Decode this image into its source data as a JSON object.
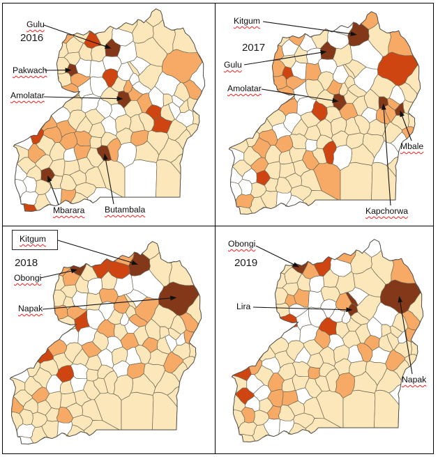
{
  "figure": {
    "kind": "choropleth small multiples",
    "region": "Uganda districts",
    "years": [
      "2016",
      "2017",
      "2018",
      "2019"
    ]
  },
  "palette": {
    "cream": "#FBE7B9",
    "white": "#FFFFFF",
    "light_orange": "#F7A966",
    "orange": "#CE4512",
    "dark_brown": "#84381A",
    "district_border": "#6E6753",
    "country_border": "#55514A",
    "annotation_text": "#111111",
    "squiggle_red": "#FF2A2A",
    "frame": "#000000"
  },
  "palette_order": [
    "cream",
    "white",
    "light_orange",
    "orange",
    "dark_brown"
  ],
  "panels": [
    {
      "year": "2016",
      "labels": [
        {
          "text": "Gulu",
          "district": "gulu",
          "squiggle": true,
          "boxed": false
        },
        {
          "text": "Pakwach",
          "district": "pakwach",
          "squiggle": true,
          "boxed": false
        },
        {
          "text": "Amolatar",
          "district": "amolatar",
          "squiggle": true,
          "boxed": false
        },
        {
          "text": "Mbarara",
          "district": "mbarara",
          "squiggle": true,
          "boxed": false
        },
        {
          "text": "Butambala",
          "district": "butambala",
          "squiggle": true,
          "boxed": false
        }
      ],
      "cells": [
        4,
        0,
        4,
        4,
        0,
        0,
        0,
        2,
        1,
        4,
        4,
        0,
        0,
        0,
        1,
        1,
        1,
        0,
        0,
        1,
        2,
        0,
        2,
        0,
        1,
        0,
        0,
        1,
        0,
        0,
        1,
        1,
        1,
        1,
        0,
        3,
        0,
        1,
        2,
        1,
        1,
        0,
        0,
        0,
        0,
        0,
        0,
        0,
        0,
        2,
        0,
        0,
        0,
        1,
        0,
        0,
        2,
        0,
        1,
        0,
        2,
        1,
        0,
        2,
        0,
        0,
        0,
        0,
        0,
        1,
        0,
        2,
        1,
        1,
        0,
        1,
        0,
        2,
        0,
        2,
        2,
        1,
        3,
        2,
        0,
        0,
        2,
        1,
        0,
        1,
        0,
        1,
        2,
        0,
        0,
        0,
        3,
        1,
        0,
        0,
        1,
        0,
        0,
        3,
        0,
        1,
        0,
        0,
        0,
        3,
        3,
        0,
        1,
        0,
        2,
        1,
        0,
        2,
        2,
        0,
        0,
        1,
        0,
        0,
        1
      ]
    },
    {
      "year": "2017",
      "labels": [
        {
          "text": "Kitgum",
          "district": "kitgum",
          "squiggle": true,
          "boxed": false
        },
        {
          "text": "Gulu",
          "district": "gulu",
          "squiggle": true,
          "boxed": false
        },
        {
          "text": "Amolatar",
          "district": "amolatar",
          "squiggle": true,
          "boxed": false
        },
        {
          "text": "Mbale",
          "district": "mbale",
          "squiggle": true,
          "boxed": false
        },
        {
          "text": "Kapchorwa",
          "district": "kapchorwa",
          "squiggle": true,
          "boxed": false
        }
      ],
      "cells": [
        4,
        4,
        3,
        4,
        4,
        4,
        2,
        3,
        0,
        3,
        0,
        0,
        1,
        0,
        1,
        0,
        1,
        2,
        0,
        1,
        2,
        2,
        0,
        2,
        0,
        0,
        2,
        2,
        1,
        0,
        0,
        0,
        0,
        2,
        2,
        1,
        1,
        0,
        0,
        1,
        0,
        1,
        1,
        2,
        0,
        0,
        0,
        1,
        0,
        3,
        0,
        0,
        2,
        0,
        0,
        1,
        0,
        0,
        0,
        0,
        0,
        0,
        0,
        1,
        0,
        0,
        0,
        0,
        1,
        1,
        1,
        0,
        2,
        1,
        0,
        0,
        0,
        0,
        2,
        0,
        2,
        0,
        0,
        1,
        0,
        0,
        0,
        1,
        0,
        2,
        2,
        1,
        2,
        0,
        0,
        0,
        0,
        0,
        1,
        2,
        3,
        2,
        2,
        0,
        2,
        0,
        2,
        0,
        0,
        1,
        0,
        0,
        1,
        0,
        2,
        0,
        1,
        0,
        0,
        1,
        0,
        1,
        1,
        0,
        0
      ]
    },
    {
      "year": "2018",
      "labels": [
        {
          "text": "Kitgum",
          "district": "kitgum",
          "squiggle": true,
          "boxed": true
        },
        {
          "text": "Obongi",
          "district": "obongi",
          "squiggle": true,
          "boxed": false
        },
        {
          "text": "Napak",
          "district": "napak",
          "squiggle": true,
          "boxed": false
        }
      ],
      "cells": [
        0,
        4,
        0,
        0,
        1,
        0,
        4,
        4,
        0,
        0,
        0,
        0,
        1,
        3,
        3,
        1,
        2,
        0,
        0,
        1,
        2,
        2,
        1,
        2,
        1,
        2,
        0,
        1,
        0,
        2,
        0,
        0,
        0,
        0,
        0,
        0,
        2,
        2,
        1,
        2,
        1,
        2,
        0,
        2,
        0,
        0,
        0,
        0,
        0,
        0,
        0,
        0,
        0,
        0,
        0,
        0,
        0,
        0,
        0,
        0,
        3,
        1,
        2,
        1,
        0,
        0,
        1,
        1,
        1,
        0,
        0,
        1,
        1,
        2,
        0,
        1,
        2,
        2,
        0,
        1,
        3,
        2,
        0,
        0,
        0,
        0,
        0,
        3,
        0,
        0,
        1,
        1,
        0,
        0,
        0,
        0,
        0,
        0,
        0,
        0,
        0,
        0,
        0,
        1,
        0,
        0,
        0,
        0,
        0,
        2,
        1,
        1,
        0,
        0,
        0,
        1,
        0,
        2,
        2,
        0,
        0,
        0,
        2,
        2,
        0
      ]
    },
    {
      "year": "2019",
      "labels": [
        {
          "text": "Obongi",
          "district": "obongi",
          "squiggle": true,
          "boxed": false
        },
        {
          "text": "Lira",
          "district": "lira",
          "squiggle": false,
          "boxed": false
        },
        {
          "text": "Napak",
          "district": "napak",
          "squiggle": true,
          "boxed": false
        }
      ],
      "cells": [
        0,
        0,
        2,
        0,
        1,
        0,
        4,
        4,
        4,
        0,
        0,
        4,
        1,
        3,
        1,
        0,
        0,
        0,
        0,
        2,
        1,
        0,
        0,
        0,
        1,
        3,
        1,
        0,
        0,
        2,
        0,
        1,
        1,
        0,
        0,
        2,
        0,
        0,
        1,
        2,
        1,
        0,
        1,
        1,
        2,
        2,
        0,
        2,
        0,
        0,
        1,
        0,
        0,
        0,
        0,
        0,
        0,
        3,
        1,
        0,
        0,
        0,
        2,
        1,
        1,
        0,
        0,
        2,
        0,
        0,
        0,
        0,
        0,
        0,
        0,
        1,
        0,
        0,
        0,
        0,
        0,
        0,
        2,
        0,
        2,
        2,
        1,
        1,
        0,
        1,
        1,
        1,
        1,
        0,
        0,
        0,
        1,
        0,
        0,
        2,
        2,
        0,
        1,
        0,
        0,
        0,
        0,
        0,
        0,
        2,
        1,
        1,
        2,
        0,
        3,
        3,
        0,
        2,
        0,
        0,
        1,
        2,
        2,
        0,
        0
      ]
    }
  ]
}
